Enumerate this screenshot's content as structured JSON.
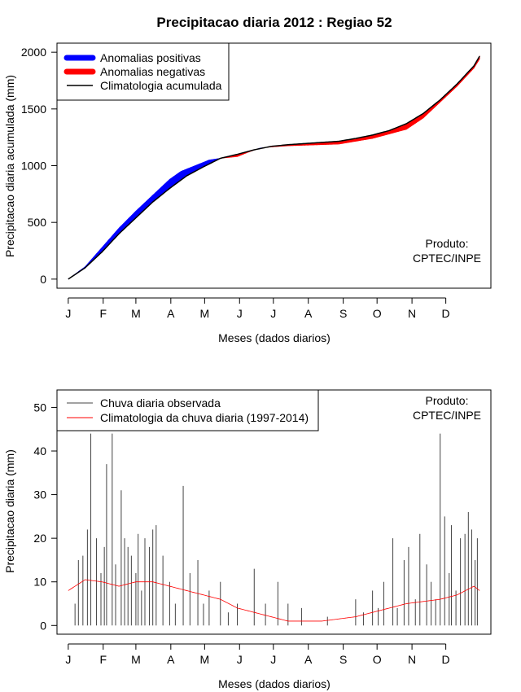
{
  "title": "Precipitacao diaria 2012 : Regiao 52",
  "chart_data": [
    {
      "type": "area",
      "xlabel": "Meses (dados diarios)",
      "ylabel": "Precipitacao diaria acumulada (mm)",
      "x_ticks": [
        "J",
        "F",
        "M",
        "A",
        "M",
        "J",
        "J",
        "A",
        "S",
        "O",
        "N",
        "D"
      ],
      "y_ticks": [
        0,
        500,
        1000,
        1500,
        2000
      ],
      "ylim": [
        -80,
        2080
      ],
      "xlim_days": [
        -10,
        375
      ],
      "legend": {
        "position": "top-left",
        "items": [
          {
            "label": "Anomalias positivas",
            "color": "#0000ff"
          },
          {
            "label": "Anomalias negativas",
            "color": "#ff0000"
          },
          {
            "label": "Climatologia acumulada",
            "color": "#000000"
          }
        ]
      },
      "annotation": {
        "line1": "Produto:",
        "line2": "CPTEC/INPE",
        "position": "bottom-right"
      },
      "observed_cumulative": {
        "day": [
          0,
          15,
          30,
          45,
          60,
          75,
          90,
          100,
          110,
          120,
          125,
          135,
          150,
          160,
          170,
          180,
          195,
          210,
          225,
          240,
          255,
          270,
          285,
          300,
          315,
          330,
          345,
          360,
          365
        ],
        "value": [
          0,
          110,
          280,
          450,
          600,
          740,
          880,
          950,
          990,
          1030,
          1050,
          1065,
          1080,
          1120,
          1155,
          1165,
          1175,
          1180,
          1185,
          1190,
          1215,
          1240,
          1280,
          1320,
          1420,
          1560,
          1700,
          1860,
          1940
        ]
      },
      "climatology_cumulative": {
        "day": [
          0,
          15,
          30,
          45,
          60,
          75,
          90,
          105,
          120,
          135,
          150,
          165,
          180,
          195,
          210,
          225,
          240,
          255,
          270,
          285,
          300,
          315,
          330,
          345,
          360,
          365
        ],
        "value": [
          0,
          100,
          240,
          400,
          540,
          680,
          800,
          910,
          990,
          1065,
          1100,
          1140,
          1170,
          1185,
          1195,
          1205,
          1215,
          1240,
          1270,
          1310,
          1370,
          1460,
          1580,
          1720,
          1880,
          1965
        ]
      }
    },
    {
      "type": "bar",
      "xlabel": "Meses (dados diarios)",
      "ylabel": "Precipitacao diaria (mm)",
      "x_ticks": [
        "J",
        "F",
        "M",
        "A",
        "M",
        "J",
        "J",
        "A",
        "S",
        "O",
        "N",
        "D"
      ],
      "y_ticks": [
        0,
        10,
        20,
        30,
        40,
        50
      ],
      "ylim": [
        -2,
        54
      ],
      "xlim_days": [
        -10,
        375
      ],
      "legend": {
        "position": "top-left",
        "items": [
          {
            "label": "Chuva diaria observada",
            "color": "#444444"
          },
          {
            "label": "Climatologia da chuva diaria (1997-2014)",
            "color": "#ff0000"
          }
        ]
      },
      "annotation": {
        "line1": "Produto:",
        "line2": "CPTEC/INPE",
        "position": "top-right"
      },
      "observed_peaks": {
        "day": [
          6,
          9,
          13,
          17,
          20,
          25,
          29,
          32,
          34,
          39,
          42,
          47,
          50,
          53,
          56,
          60,
          62,
          65,
          68,
          72,
          75,
          78,
          84,
          90,
          95,
          102,
          108,
          115,
          120,
          125,
          135,
          142,
          150,
          165,
          175,
          186,
          195,
          207,
          230,
          255,
          262,
          270,
          275,
          280,
          288,
          292,
          298,
          302,
          308,
          312,
          318,
          322,
          326,
          330,
          334,
          338,
          340,
          344,
          348,
          352,
          355,
          358,
          361,
          363
        ],
        "value": [
          5,
          15,
          16,
          22,
          44,
          20,
          12,
          18,
          37,
          44,
          14,
          31,
          20,
          18,
          16,
          12,
          21,
          8,
          20,
          18,
          22,
          23,
          16,
          10,
          5,
          32,
          12,
          15,
          5,
          8,
          10,
          3,
          5,
          13,
          5,
          10,
          5,
          4,
          2,
          6,
          3,
          8,
          4,
          10,
          20,
          4,
          15,
          18,
          6,
          21,
          14,
          10,
          6,
          44,
          25,
          12,
          23,
          8,
          20,
          21,
          26,
          22,
          15,
          20
        ]
      },
      "climatology": {
        "day": [
          0,
          15,
          30,
          45,
          60,
          75,
          90,
          105,
          120,
          135,
          150,
          165,
          180,
          195,
          210,
          225,
          240,
          255,
          270,
          285,
          300,
          315,
          330,
          345,
          360,
          365
        ],
        "value": [
          8,
          10.5,
          10,
          9,
          10,
          10,
          9,
          8,
          7,
          6,
          4,
          3,
          2,
          1,
          1,
          1,
          1.5,
          2,
          3,
          4,
          5,
          5.5,
          6,
          7,
          9,
          8
        ]
      }
    }
  ]
}
